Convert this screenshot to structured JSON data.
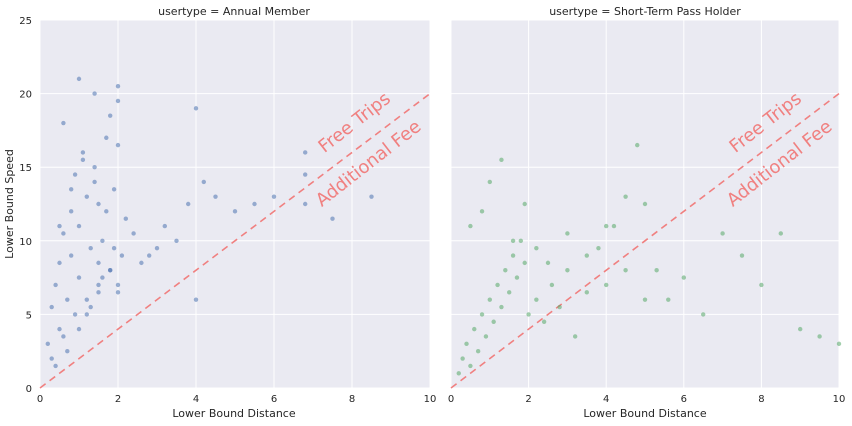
{
  "figure": {
    "ylabel": "Lower Bound Speed",
    "xlabel": "Lower Bound Distance"
  },
  "chart_data": [
    {
      "type": "scatter",
      "title": "usertype = Annual Member",
      "xlabel": "Lower Bound Distance",
      "ylabel": "Lower Bound Speed",
      "xlim": [
        0,
        10
      ],
      "ylim": [
        0,
        25
      ],
      "xticks": [
        "0",
        "2",
        "4",
        "6",
        "8",
        "10"
      ],
      "yticks": [
        "0",
        "5",
        "10",
        "15",
        "20",
        "25"
      ],
      "grid": true,
      "point_color": "#4c72b0",
      "series": [
        {
          "x": [
            0.2,
            0.3,
            0.4,
            0.5,
            0.5,
            0.6,
            0.7,
            0.8,
            0.8,
            0.9,
            1.0,
            1.0,
            1.1,
            1.2,
            1.2,
            1.3,
            1.4,
            1.5,
            1.5,
            1.6,
            1.7,
            1.8,
            1.9,
            2.0,
            2.1,
            2.2,
            2.4,
            2.6,
            2.8,
            3.0,
            3.2,
            3.5,
            3.8,
            4.0,
            4.2,
            4.5,
            5.0,
            5.5,
            6.0,
            6.8,
            6.8,
            6.8,
            0.3,
            0.6,
            0.9,
            1.2,
            1.5,
            1.8,
            2.0,
            0.4,
            0.7,
            1.0,
            1.3,
            1.6,
            1.9,
            0.5,
            0.8,
            1.1,
            1.4,
            1.7,
            2.0,
            0.6,
            1.0,
            1.4,
            1.8,
            2.0,
            1.5,
            2.0,
            4.0,
            7.5,
            8.5
          ],
          "y": [
            3.0,
            5.5,
            7.0,
            4.0,
            8.5,
            10.5,
            6.0,
            12.0,
            9.0,
            14.5,
            7.5,
            11.0,
            16.0,
            5.0,
            13.0,
            9.5,
            15.0,
            6.5,
            12.5,
            10.0,
            17.0,
            8.0,
            13.5,
            19.5,
            9.0,
            11.5,
            10.5,
            8.5,
            9.0,
            9.5,
            11.0,
            10.0,
            12.5,
            19.0,
            14.0,
            13.0,
            12.0,
            12.5,
            13.0,
            12.5,
            14.5,
            16.0,
            2.0,
            3.5,
            5.0,
            6.0,
            7.0,
            8.0,
            6.5,
            1.5,
            2.5,
            4.0,
            5.5,
            7.5,
            9.5,
            11.0,
            13.5,
            15.5,
            14.0,
            12.0,
            16.5,
            18.0,
            21.0,
            20.0,
            18.5,
            20.5,
            8.5,
            7.0,
            6.0,
            11.5,
            13.0
          ]
        }
      ]
    },
    {
      "type": "scatter",
      "title": "usertype = Short-Term Pass Holder",
      "xlabel": "Lower Bound Distance",
      "ylabel": "",
      "xlim": [
        0,
        10
      ],
      "ylim": [
        0,
        25
      ],
      "xticks": [
        "0",
        "2",
        "4",
        "6",
        "8",
        "10"
      ],
      "yticks": [],
      "grid": true,
      "point_color": "#55a868",
      "series": [
        {
          "x": [
            0.2,
            0.3,
            0.4,
            0.5,
            0.6,
            0.7,
            0.8,
            0.9,
            1.0,
            1.1,
            1.2,
            1.3,
            1.4,
            1.5,
            1.6,
            1.7,
            1.8,
            1.9,
            2.0,
            2.2,
            2.4,
            2.6,
            2.8,
            3.0,
            3.2,
            3.5,
            3.8,
            4.0,
            4.2,
            4.5,
            4.8,
            5.0,
            5.3,
            5.6,
            6.0,
            6.5,
            7.0,
            7.5,
            8.0,
            8.5,
            9.0,
            9.5,
            10.0,
            0.5,
            0.8,
            1.0,
            1.3,
            1.6,
            1.9,
            2.2,
            2.5,
            3.0,
            3.5,
            4.0,
            4.5,
            5.0
          ],
          "y": [
            1.0,
            2.0,
            3.0,
            1.5,
            4.0,
            2.5,
            5.0,
            3.5,
            6.0,
            4.5,
            7.0,
            5.5,
            8.0,
            6.5,
            9.0,
            7.5,
            10.0,
            8.5,
            5.0,
            6.0,
            4.5,
            7.0,
            5.5,
            8.0,
            3.5,
            6.5,
            9.5,
            7.0,
            11.0,
            13.0,
            16.5,
            12.5,
            8.0,
            6.0,
            7.5,
            5.0,
            10.5,
            9.0,
            7.0,
            10.5,
            4.0,
            3.5,
            3.0,
            11.0,
            12.0,
            14.0,
            15.5,
            10.0,
            12.5,
            9.5,
            8.5,
            10.5,
            9.0,
            11.0,
            8.0,
            6.0
          ]
        }
      ]
    }
  ],
  "annotations": {
    "upper": "Free Trips",
    "lower": "Additional Fee",
    "line_color": "#f08080"
  }
}
